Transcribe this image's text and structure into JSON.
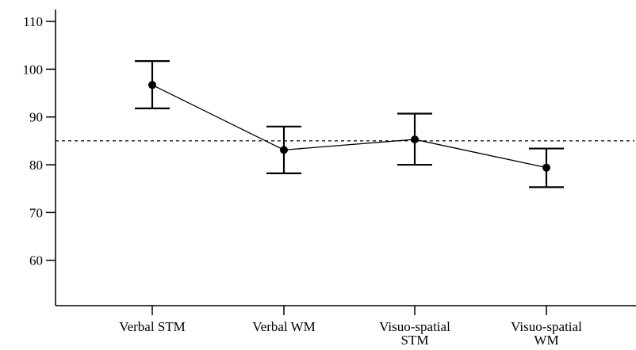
{
  "chart_data": {
    "type": "line",
    "categories": [
      "Verbal STM",
      "Verbal WM",
      "Visuo-spatial STM",
      "Visuo-spatial WM"
    ],
    "category_label_lines": [
      [
        "Verbal STM"
      ],
      [
        "Verbal WM"
      ],
      [
        "Visuo-spatial",
        "STM"
      ],
      [
        "Visuo-spatial",
        "WM"
      ]
    ],
    "series": [
      {
        "values": [
          96.7,
          83.1,
          85.3,
          79.4
        ],
        "error_low": [
          91.8,
          78.2,
          80.0,
          75.3
        ],
        "error_high": [
          101.7,
          88.0,
          90.7,
          83.4
        ]
      }
    ],
    "reference_line": {
      "value": 85,
      "style": "dashed"
    },
    "yticks": [
      60,
      70,
      80,
      90,
      100,
      110
    ],
    "ylim": [
      50.5,
      112.5
    ],
    "title": "",
    "xlabel": "",
    "ylabel": "",
    "grid": false,
    "colors": {
      "line": "#000000",
      "marker": "#000000",
      "axis": "#000000"
    }
  }
}
